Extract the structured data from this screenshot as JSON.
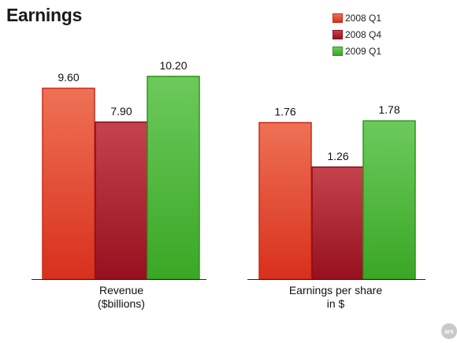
{
  "title": "Earnings",
  "watermark": "ars",
  "colors": {
    "2008 Q1": "#e2492f",
    "2008 Q4": "#a8202e",
    "2009 Q1": "#4cb43a"
  },
  "chart_data": [
    {
      "type": "bar",
      "title": "",
      "xlabel": "Revenue\n($billions)",
      "xlabel_lines": [
        "Revenue",
        "($billions)"
      ],
      "ylabel": "",
      "ylim": [
        0,
        11.9
      ],
      "grid": false,
      "legend": "top-right",
      "series": [
        {
          "name": "2008 Q1",
          "values": [
            9.6
          ],
          "labels": [
            "9.60"
          ]
        },
        {
          "name": "2008 Q4",
          "values": [
            7.9
          ],
          "labels": [
            "7.90"
          ]
        },
        {
          "name": "2009 Q1",
          "values": [
            10.2
          ],
          "labels": [
            "10.20"
          ]
        }
      ]
    },
    {
      "type": "bar",
      "title": "",
      "xlabel": "Earnings per share\nin $",
      "xlabel_lines": [
        "Earnings per share",
        "in $"
      ],
      "ylabel": "",
      "ylim": [
        0,
        2.66
      ],
      "grid": false,
      "legend": "top-right",
      "series": [
        {
          "name": "2008 Q1",
          "values": [
            1.76
          ],
          "labels": [
            "1.76"
          ]
        },
        {
          "name": "2008 Q4",
          "values": [
            1.26
          ],
          "labels": [
            "1.26"
          ]
        },
        {
          "name": "2009 Q1",
          "values": [
            1.78
          ],
          "labels": [
            "1.78"
          ]
        }
      ]
    }
  ]
}
